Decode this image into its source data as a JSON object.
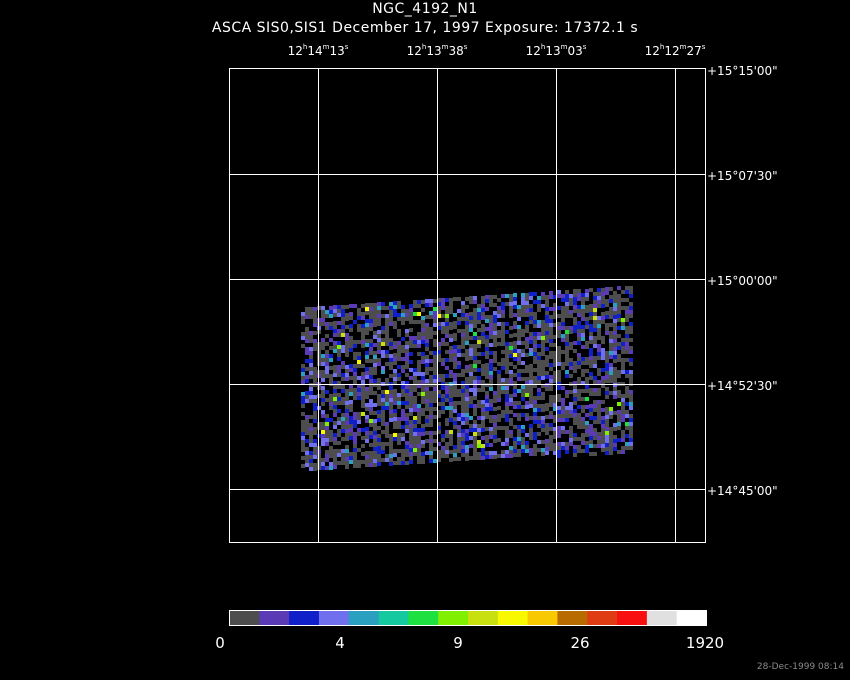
{
  "header": {
    "object_name": "NGC_4192_N1",
    "subtitle": "ASCA SIS0,SIS1 December 17, 1997 Exposure: 17372.1 s"
  },
  "ra_labels": [
    {
      "h": "12",
      "m": "14",
      "s": "13"
    },
    {
      "h": "12",
      "m": "13",
      "s": "38"
    },
    {
      "h": "12",
      "m": "13",
      "s": "03"
    },
    {
      "h": "12",
      "m": "12",
      "s": "27"
    }
  ],
  "dec_labels": [
    "+15°15'00\"",
    "+15°07'30\"",
    "+15°00'00\"",
    "+14°52'30\"",
    "+14°45'00\""
  ],
  "colorbar": {
    "colors": [
      "#4d4d4d",
      "#5a3bb5",
      "#1020c8",
      "#7070ee",
      "#2aa0c0",
      "#14c8a0",
      "#1ee040",
      "#80f000",
      "#c8e010",
      "#f8f800",
      "#f8c800",
      "#b86c00",
      "#e03c14",
      "#f81010",
      "#e0e0e0",
      "#ffffff"
    ],
    "tick_labels": [
      "0",
      "4",
      "9",
      "26",
      "1920"
    ]
  },
  "timestamp": "28-Dec-1999 08:14"
}
